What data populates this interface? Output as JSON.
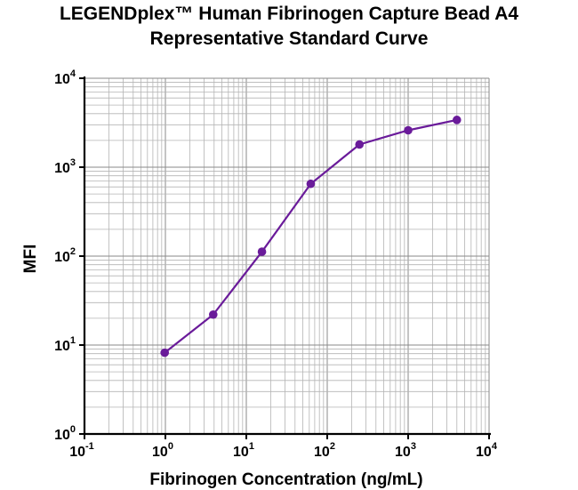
{
  "chart_data": {
    "type": "line",
    "title": "LEGENDplex™ Human Fibrinogen Capture Bead A4",
    "subtitle": "Representative Standard Curve",
    "xlabel": "Fibrinogen Concentration (ng/mL)",
    "ylabel": "MFI",
    "x_scale": "log",
    "y_scale": "log",
    "xlim": [
      0.1,
      10000
    ],
    "ylim": [
      1,
      10000
    ],
    "x_ticks": [
      {
        "base": "10",
        "exp": "-1",
        "value": 0.1
      },
      {
        "base": "10",
        "exp": "0",
        "value": 1
      },
      {
        "base": "10",
        "exp": "1",
        "value": 10
      },
      {
        "base": "10",
        "exp": "2",
        "value": 100
      },
      {
        "base": "10",
        "exp": "3",
        "value": 1000
      },
      {
        "base": "10",
        "exp": "4",
        "value": 10000
      }
    ],
    "y_ticks": [
      {
        "base": "10",
        "exp": "0",
        "value": 1
      },
      {
        "base": "10",
        "exp": "1",
        "value": 10
      },
      {
        "base": "10",
        "exp": "2",
        "value": 100
      },
      {
        "base": "10",
        "exp": "3",
        "value": 1000
      },
      {
        "base": "10",
        "exp": "4",
        "value": 10000
      }
    ],
    "grid": true,
    "series": [
      {
        "color": "#6a1b9a",
        "x": [
          0.98,
          3.9,
          15.6,
          62.5,
          250,
          1000,
          4000
        ],
        "y": [
          8.2,
          22,
          112,
          650,
          1800,
          2600,
          3400
        ]
      }
    ]
  }
}
